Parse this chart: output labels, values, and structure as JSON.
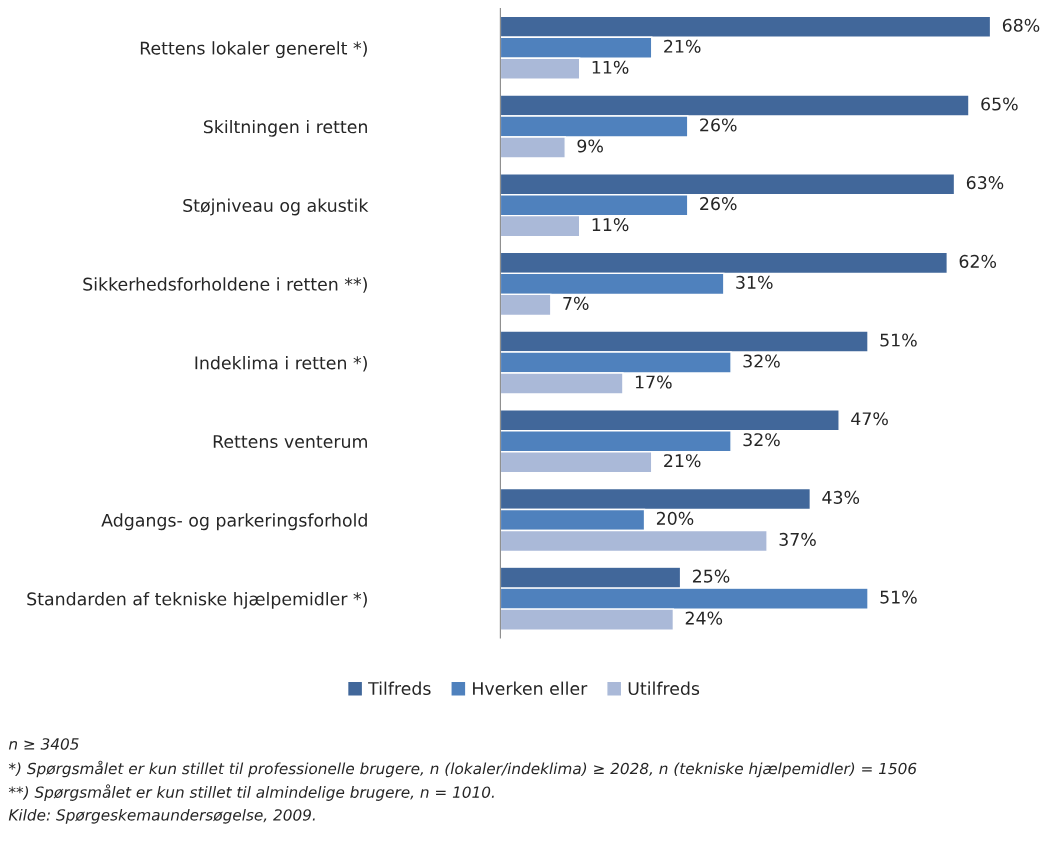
{
  "chart_data": {
    "type": "bar",
    "orientation": "horizontal",
    "categories": [
      "Rettens lokaler generelt *)",
      "Skiltningen i retten",
      "Støjniveau og akustik",
      "Sikkerhedsforholdene i retten **)",
      "Indeklima i retten *)",
      "Rettens venterum",
      "Adgangs- og parkeringsforhold",
      "Standarden af tekniske hjælpemidler *)"
    ],
    "series": [
      {
        "name": "Tilfreds",
        "color": "#41679a",
        "values": [
          68,
          65,
          63,
          62,
          51,
          47,
          43,
          25
        ],
        "value_labels": [
          "68%",
          "65%",
          "63%",
          "62%",
          "51%",
          "47%",
          "43%",
          "25%"
        ]
      },
      {
        "name": "Hverken eller",
        "color": "#4f81bd",
        "values": [
          21,
          26,
          26,
          31,
          32,
          32,
          20,
          51
        ],
        "value_labels": [
          "21%",
          "26%",
          "26%",
          "31%",
          "32%",
          "32%",
          "20%",
          "51%"
        ]
      },
      {
        "name": "Utilfreds",
        "color": "#aab9d8",
        "values": [
          11,
          9,
          11,
          7,
          17,
          21,
          37,
          24
        ],
        "value_labels": [
          "11%",
          "9%",
          "11%",
          "7%",
          "17%",
          "21%",
          "37%",
          "24%"
        ]
      }
    ],
    "legend": "bottom",
    "grid": false,
    "annotations": [
      "n ≥ 3405",
      "*) Spørgsmålet er kun stillet til professionelle brugere, n (lokaler/indeklima) ≥ 2028, n (tekniske hjælpemidler) = 1506",
      "**) Spørgsmålet er kun stillet til almindelige brugere, n = 1010.",
      "Kilde: Spørgeskemaundersøgelse, 2009."
    ]
  }
}
